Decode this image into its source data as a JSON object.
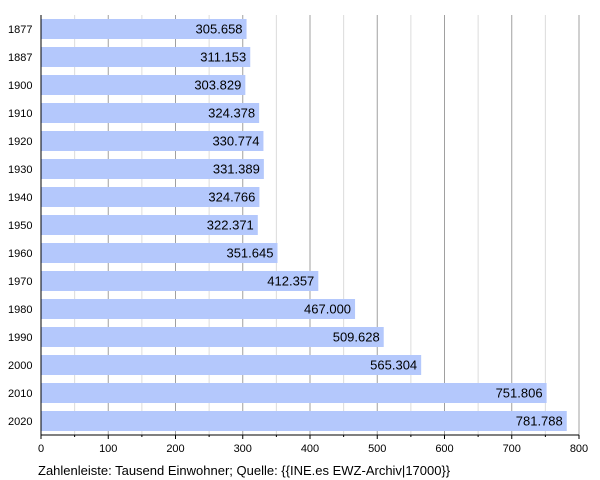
{
  "chart_data": {
    "type": "bar",
    "orientation": "horizontal",
    "categories": [
      "1877",
      "1887",
      "1900",
      "1910",
      "1920",
      "1930",
      "1940",
      "1950",
      "1960",
      "1970",
      "1980",
      "1990",
      "2000",
      "2010",
      "2020"
    ],
    "values": [
      305.658,
      311.153,
      303.829,
      324.378,
      330.774,
      331.389,
      324.766,
      322.371,
      351.645,
      412.357,
      467.0,
      509.628,
      565.304,
      751.806,
      781.788
    ],
    "value_labels": [
      "305.658",
      "311.153",
      "303.829",
      "324.378",
      "330.774",
      "331.389",
      "324.766",
      "322.371",
      "351.645",
      "412.357",
      "467.000",
      "509.628",
      "565.304",
      "751.806",
      "781.788"
    ],
    "xlim": [
      0,
      800
    ],
    "x_ticks": [
      0,
      100,
      200,
      300,
      400,
      500,
      600,
      700,
      800
    ],
    "bar_color": "#b4c8fc",
    "grid": true,
    "title": "",
    "xlabel": "",
    "ylabel": "",
    "caption": "Zahlenleiste: Tausend Einwohner; Quelle: {{INE.es EWZ-Archiv|17000}}"
  }
}
